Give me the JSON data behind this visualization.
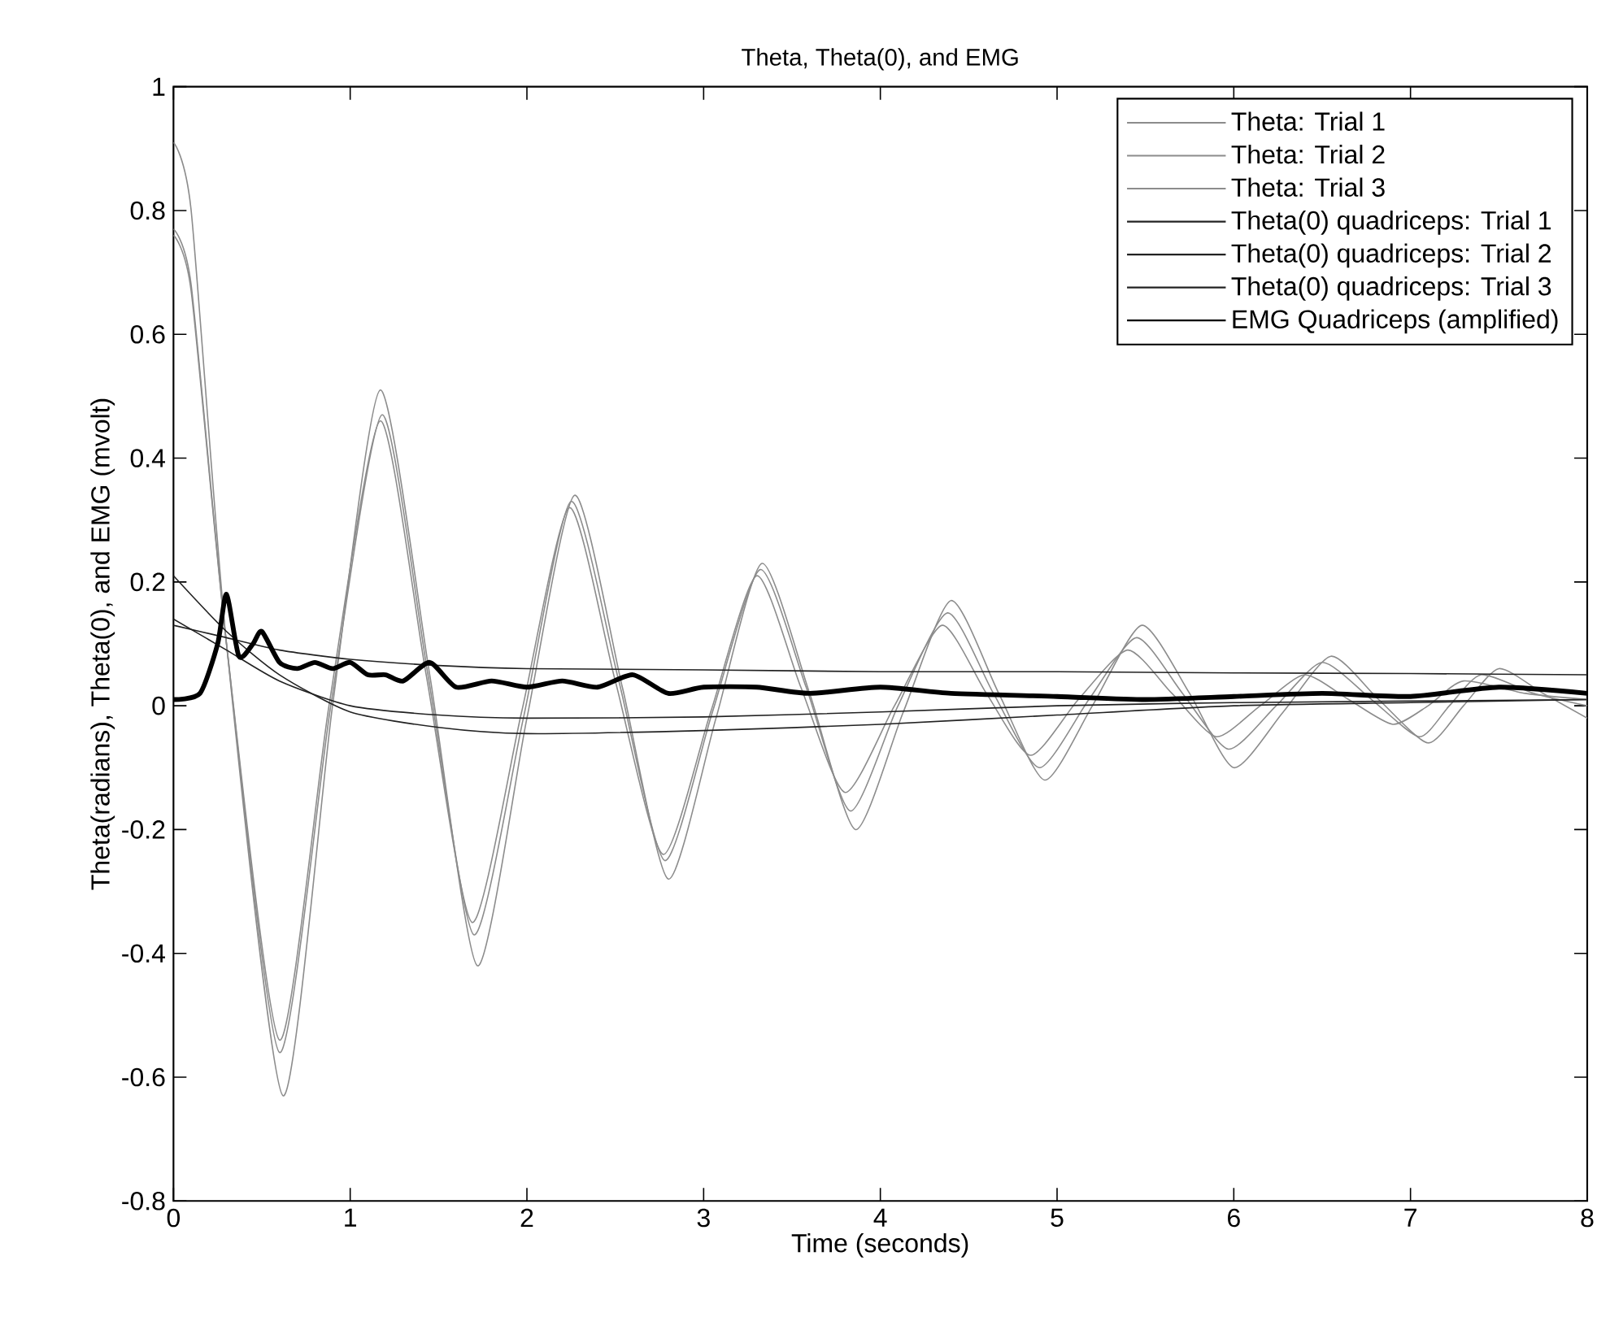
{
  "chart_data": {
    "type": "line",
    "title": "Theta, Theta(0), and EMG",
    "xlabel": "Time (seconds)",
    "ylabel": "Theta(radians), Theta(0), and EMG (mvolt)",
    "xlim": [
      0,
      8
    ],
    "ylim": [
      -0.8,
      1
    ],
    "xticks": [
      0,
      1,
      2,
      3,
      4,
      5,
      6,
      7,
      8
    ],
    "yticks": [
      -0.8,
      -0.6,
      -0.4,
      -0.2,
      0,
      0.2,
      0.4,
      0.6,
      0.8,
      1
    ],
    "grid": false,
    "legend": "top right",
    "marker": "none",
    "series": [
      {
        "name": "Theta: Trial 1",
        "color": "#8c8c8c",
        "x": [
          0,
          0.1,
          0.3,
          0.62,
          0.9,
          1.17,
          1.45,
          1.72,
          2.0,
          2.27,
          2.54,
          2.8,
          3.07,
          3.33,
          3.6,
          3.86,
          4.13,
          4.4,
          4.67,
          4.93,
          5.2,
          5.48,
          5.75,
          6.0,
          6.28,
          6.55,
          6.82,
          7.1,
          7.3,
          7.5,
          7.75,
          8
        ],
        "values": [
          0.91,
          0.8,
          0.1,
          -0.63,
          0.0,
          0.51,
          0.05,
          -0.42,
          -0.02,
          0.34,
          0.03,
          -0.28,
          -0.02,
          0.23,
          0.02,
          -0.2,
          -0.01,
          0.17,
          0.02,
          -0.12,
          0.0,
          0.13,
          0.02,
          -0.1,
          -0.01,
          0.08,
          0.01,
          -0.06,
          0.0,
          0.06,
          0.02,
          -0.02
        ]
      },
      {
        "name": "Theta: Trial 2",
        "color": "#8c8c8c",
        "x": [
          0,
          0.1,
          0.3,
          0.6,
          0.89,
          1.18,
          1.44,
          1.7,
          1.98,
          2.25,
          2.52,
          2.78,
          3.05,
          3.32,
          3.58,
          3.83,
          4.1,
          4.38,
          4.64,
          4.9,
          5.18,
          5.45,
          5.71,
          5.97,
          6.24,
          6.5,
          6.78,
          7.05,
          7.22,
          7.4,
          7.7,
          8
        ],
        "values": [
          0.77,
          0.68,
          0.1,
          -0.56,
          0.0,
          0.47,
          0.05,
          -0.37,
          -0.02,
          0.33,
          0.04,
          -0.25,
          -0.01,
          0.22,
          0.03,
          -0.17,
          0.0,
          0.15,
          0.02,
          -0.1,
          0.01,
          0.11,
          0.02,
          -0.07,
          0.0,
          0.07,
          0.01,
          -0.05,
          0.0,
          0.05,
          0.02,
          0.0
        ]
      },
      {
        "name": "Theta: Trial 3",
        "color": "#8c8c8c",
        "x": [
          0,
          0.1,
          0.3,
          0.6,
          0.88,
          1.17,
          1.43,
          1.69,
          1.97,
          2.24,
          2.5,
          2.77,
          3.04,
          3.3,
          3.55,
          3.8,
          4.08,
          4.35,
          4.6,
          4.85,
          5.12,
          5.4,
          5.65,
          5.9,
          6.15,
          6.4,
          6.65,
          6.9,
          7.1,
          7.3,
          7.65,
          8
        ],
        "values": [
          0.76,
          0.67,
          0.1,
          -0.54,
          0.0,
          0.46,
          0.05,
          -0.35,
          -0.01,
          0.32,
          0.04,
          -0.24,
          -0.01,
          0.21,
          0.03,
          -0.14,
          0.0,
          0.13,
          0.02,
          -0.08,
          0.01,
          0.09,
          0.02,
          -0.05,
          0.0,
          0.05,
          0.01,
          -0.03,
          0.0,
          0.04,
          0.02,
          0.01
        ]
      },
      {
        "name": "Theta(0) quadriceps: Trial 1",
        "color": "#222222",
        "x": [
          0,
          0.3,
          0.6,
          1.0,
          1.5,
          2,
          3,
          4,
          5,
          6,
          7,
          8
        ],
        "values": [
          0.21,
          0.12,
          0.05,
          -0.01,
          -0.035,
          -0.045,
          -0.04,
          -0.03,
          -0.015,
          0.0,
          0.005,
          0.01
        ]
      },
      {
        "name": "Theta(0) quadriceps: Trial 2",
        "color": "#222222",
        "x": [
          0,
          0.3,
          0.6,
          1.0,
          1.5,
          2,
          3,
          4,
          5,
          6,
          8
        ],
        "values": [
          0.14,
          0.09,
          0.04,
          0.0,
          -0.015,
          -0.02,
          -0.018,
          -0.01,
          0.0,
          0.005,
          0.01
        ]
      },
      {
        "name": "Theta(0) quadriceps: Trial 3",
        "color": "#222222",
        "x": [
          0,
          0.3,
          0.6,
          1.0,
          1.5,
          2,
          3,
          4,
          5,
          6,
          7,
          8
        ],
        "values": [
          0.13,
          0.11,
          0.09,
          0.075,
          0.065,
          0.06,
          0.058,
          0.055,
          0.055,
          0.053,
          0.052,
          0.05
        ]
      },
      {
        "name": "EMG Quadriceps (amplified)",
        "color": "#000000",
        "x": [
          0,
          0.15,
          0.25,
          0.3,
          0.37,
          0.45,
          0.5,
          0.6,
          0.7,
          0.8,
          0.9,
          1.0,
          1.1,
          1.2,
          1.3,
          1.45,
          1.6,
          1.8,
          2.0,
          2.2,
          2.4,
          2.6,
          2.8,
          3.0,
          3.3,
          3.6,
          4.0,
          4.4,
          5.0,
          5.5,
          6.0,
          6.5,
          7.0,
          7.5,
          8
        ],
        "values": [
          0.01,
          0.02,
          0.1,
          0.18,
          0.08,
          0.1,
          0.12,
          0.07,
          0.06,
          0.07,
          0.06,
          0.07,
          0.05,
          0.05,
          0.04,
          0.07,
          0.03,
          0.04,
          0.03,
          0.04,
          0.03,
          0.05,
          0.02,
          0.03,
          0.03,
          0.02,
          0.03,
          0.02,
          0.015,
          0.01,
          0.015,
          0.02,
          0.015,
          0.03,
          0.02
        ]
      }
    ]
  }
}
